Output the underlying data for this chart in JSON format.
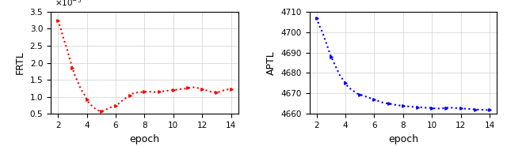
{
  "left": {
    "ylabel": "FRTL",
    "xlabel": "epoch",
    "color": "#ff0000",
    "xlim": [
      1.5,
      14.5
    ],
    "ylim": [
      5e-06,
      3.5e-05
    ],
    "yticks": [
      5e-06,
      1e-05,
      1.5e-05,
      2e-05,
      2.5e-05,
      3e-05,
      3.5e-05
    ],
    "xticks": [
      2,
      4,
      6,
      8,
      10,
      12,
      14
    ],
    "x": [
      2.0,
      2.2,
      2.4,
      2.6,
      2.8,
      3.0,
      3.2,
      3.4,
      3.6,
      3.8,
      4.0,
      4.2,
      4.4,
      4.6,
      4.8,
      5.0,
      5.2,
      5.4,
      5.6,
      5.8,
      6.0,
      6.2,
      6.4,
      6.6,
      6.8,
      7.0,
      7.2,
      7.4,
      7.6,
      7.8,
      8.0,
      8.2,
      8.4,
      8.6,
      8.8,
      9.0,
      9.2,
      9.4,
      9.6,
      9.8,
      10.0,
      10.2,
      10.4,
      10.6,
      10.8,
      11.0,
      11.2,
      11.4,
      11.6,
      11.8,
      12.0,
      12.2,
      12.4,
      12.6,
      12.8,
      13.0,
      13.2,
      13.4,
      13.6,
      13.8,
      14.0
    ],
    "y": [
      3.25e-05,
      3e-05,
      2.7e-05,
      2.45e-05,
      2.15e-05,
      1.85e-05,
      1.6e-05,
      1.42e-05,
      1.22e-05,
      1.1e-05,
      9.2e-06,
      8e-06,
      7.2e-06,
      6.5e-06,
      6e-06,
      5.8e-06,
      6e-06,
      6.4e-06,
      6.8e-06,
      7.2e-06,
      7.5e-06,
      8e-06,
      8.7e-06,
      9.3e-06,
      1e-05,
      1.05e-05,
      1.1e-05,
      1.12e-05,
      1.13e-05,
      1.14e-05,
      1.15e-05,
      1.15e-05,
      1.15e-05,
      1.14e-05,
      1.14e-05,
      1.15e-05,
      1.16e-05,
      1.17e-05,
      1.18e-05,
      1.19e-05,
      1.2e-05,
      1.21e-05,
      1.22e-05,
      1.23e-05,
      1.24e-05,
      1.26e-05,
      1.27e-05,
      1.28e-05,
      1.27e-05,
      1.25e-05,
      1.23e-05,
      1.2e-05,
      1.18e-05,
      1.15e-05,
      1.14e-05,
      1.13e-05,
      1.15e-05,
      1.18e-05,
      1.2e-05,
      1.22e-05,
      1.22e-05
    ]
  },
  "right": {
    "ylabel": "APTL",
    "xlabel": "epoch",
    "color": "#0000ff",
    "xlim": [
      1.5,
      14.5
    ],
    "ylim": [
      4660,
      4710
    ],
    "yticks": [
      4660,
      4670,
      4680,
      4690,
      4700,
      4710
    ],
    "xticks": [
      2,
      4,
      6,
      8,
      10,
      12,
      14
    ],
    "x": [
      2.0,
      2.2,
      2.4,
      2.6,
      2.8,
      3.0,
      3.2,
      3.4,
      3.6,
      3.8,
      4.0,
      4.2,
      4.4,
      4.6,
      4.8,
      5.0,
      5.2,
      5.4,
      5.6,
      5.8,
      6.0,
      6.2,
      6.4,
      6.6,
      6.8,
      7.0,
      7.2,
      7.4,
      7.6,
      7.8,
      8.0,
      8.2,
      8.4,
      8.6,
      8.8,
      9.0,
      9.2,
      9.4,
      9.6,
      9.8,
      10.0,
      10.2,
      10.4,
      10.6,
      10.8,
      11.0,
      11.2,
      11.4,
      11.6,
      11.8,
      12.0,
      12.2,
      12.4,
      12.6,
      12.8,
      13.0,
      13.2,
      13.4,
      13.6,
      13.8,
      14.0
    ],
    "y": [
      4707,
      4703,
      4700,
      4696,
      4692,
      4688,
      4685,
      4682,
      4679,
      4677,
      4675,
      4673,
      4672,
      4671,
      4670,
      4669.5,
      4669,
      4668.5,
      4668,
      4667.5,
      4667,
      4666.5,
      4666,
      4665.5,
      4665.2,
      4665,
      4664.8,
      4664.5,
      4664.3,
      4664.1,
      4663.9,
      4663.8,
      4663.6,
      4663.5,
      4663.4,
      4663.3,
      4663.2,
      4663.1,
      4663.0,
      4663.0,
      4662.8,
      4662.7,
      4662.6,
      4662.7,
      4662.8,
      4663.0,
      4663.1,
      4663.0,
      4662.9,
      4662.8,
      4662.7,
      4662.6,
      4662.5,
      4662.4,
      4662.3,
      4662.2,
      4662.1,
      4662.0,
      4662.0,
      4661.9,
      4661.9
    ]
  }
}
